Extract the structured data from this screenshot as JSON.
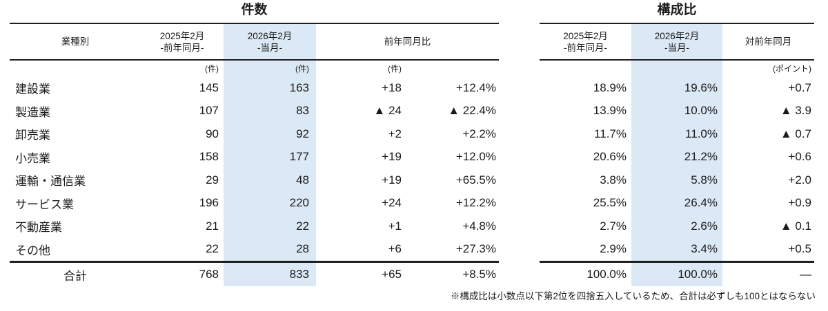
{
  "colors": {
    "highlight": "#dbe8f5",
    "line": "#1f1f1f",
    "text": "#1b1b1b"
  },
  "count_table": {
    "title": "件数",
    "header": {
      "industry": "業種別",
      "prev_line1": "2025年2月",
      "prev_line2": "-前年同月-",
      "cur_line1": "2026年2月",
      "cur_line2": "-当月-",
      "yoy": "前年同月比"
    },
    "units": {
      "prev": "(件)",
      "cur": "(件)",
      "diff": "(件)"
    },
    "rows": [
      {
        "label": "建設業",
        "prev": "145",
        "cur": "163",
        "diff": "+18",
        "pct": "+12.4%"
      },
      {
        "label": "製造業",
        "prev": "107",
        "cur": "83",
        "diff": "▲ 24",
        "pct": "▲ 22.4%"
      },
      {
        "label": "卸売業",
        "prev": "90",
        "cur": "92",
        "diff": "+2",
        "pct": "+2.2%"
      },
      {
        "label": "小売業",
        "prev": "158",
        "cur": "177",
        "diff": "+19",
        "pct": "+12.0%"
      },
      {
        "label": "運輸・通信業",
        "prev": "29",
        "cur": "48",
        "diff": "+19",
        "pct": "+65.5%"
      },
      {
        "label": "サービス業",
        "prev": "196",
        "cur": "220",
        "diff": "+24",
        "pct": "+12.2%"
      },
      {
        "label": "不動産業",
        "prev": "21",
        "cur": "22",
        "diff": "+1",
        "pct": "+4.8%"
      },
      {
        "label": "その他",
        "prev": "22",
        "cur": "28",
        "diff": "+6",
        "pct": "+27.3%"
      }
    ],
    "total": {
      "label": "合計",
      "prev": "768",
      "cur": "833",
      "diff": "+65",
      "pct": "+8.5%"
    }
  },
  "ratio_table": {
    "title": "構成比",
    "header": {
      "prev_line1": "2025年2月",
      "prev_line2": "-前年同月-",
      "cur_line1": "2026年2月",
      "cur_line2": "-当月-",
      "diff": "対前年同月"
    },
    "units": {
      "diff": "(ポイント)"
    },
    "rows": [
      {
        "prev": "18.9%",
        "cur": "19.6%",
        "diff": "+0.7"
      },
      {
        "prev": "13.9%",
        "cur": "10.0%",
        "diff": "▲ 3.9"
      },
      {
        "prev": "11.7%",
        "cur": "11.0%",
        "diff": "▲ 0.7"
      },
      {
        "prev": "20.6%",
        "cur": "21.2%",
        "diff": "+0.6"
      },
      {
        "prev": "3.8%",
        "cur": "5.8%",
        "diff": "+2.0"
      },
      {
        "prev": "25.5%",
        "cur": "26.4%",
        "diff": "+0.9"
      },
      {
        "prev": "2.7%",
        "cur": "2.6%",
        "diff": "▲ 0.1"
      },
      {
        "prev": "2.9%",
        "cur": "3.4%",
        "diff": "+0.5"
      }
    ],
    "total": {
      "prev": "100.0%",
      "cur": "100.0%",
      "diff": "—"
    }
  },
  "footnote": "※構成比は小数点以下第2位を四捨五入しているため、合計は必ずしも100とはならない"
}
